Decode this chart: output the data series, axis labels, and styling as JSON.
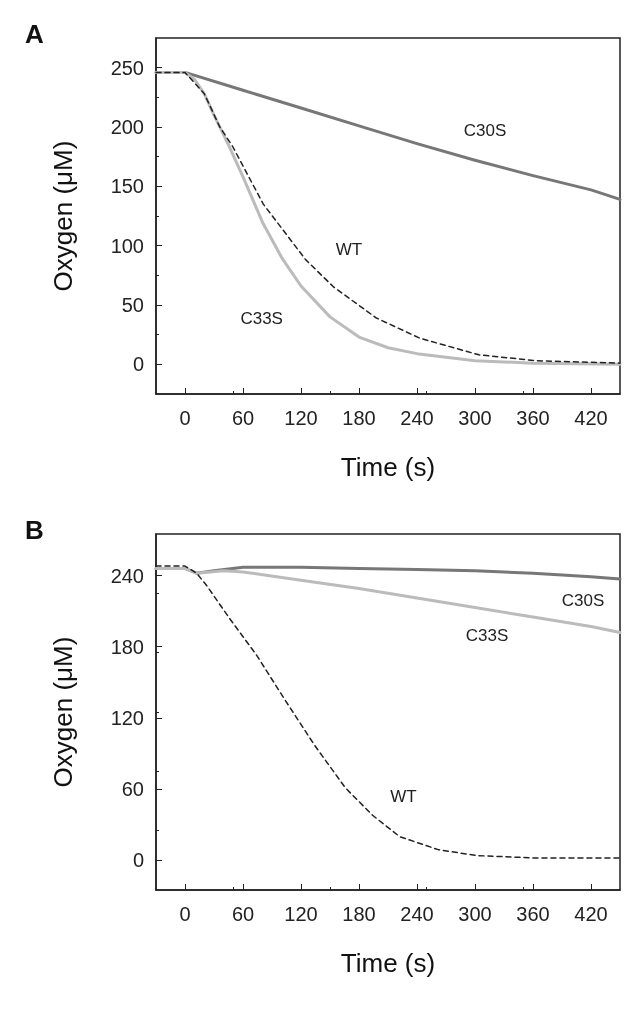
{
  "chart_data": [
    {
      "type": "line",
      "title": "A",
      "xlabel": "Time (s)",
      "ylabel": "Oxygen (μM)",
      "xlim": [
        -30,
        450
      ],
      "ylim": [
        -25,
        275
      ],
      "xticks": [
        0,
        60,
        120,
        180,
        240,
        300,
        360,
        420
      ],
      "yticks": [
        0,
        50,
        100,
        150,
        200,
        250
      ],
      "marker": "none",
      "series": [
        {
          "name": "C30S",
          "color": "#777777",
          "line_style": "solid",
          "x": [
            -30,
            0,
            60,
            120,
            180,
            240,
            300,
            360,
            420,
            450
          ],
          "values": [
            246,
            246,
            231,
            216,
            201,
            186,
            172,
            159,
            147,
            139
          ]
        },
        {
          "name": "C33S",
          "color": "#bbbbbb",
          "line_style": "solid",
          "x": [
            -30,
            0,
            10,
            20,
            30,
            45,
            60,
            80,
            100,
            120,
            150,
            180,
            210,
            240,
            300,
            360,
            450
          ],
          "values": [
            246,
            246,
            240,
            228,
            210,
            185,
            158,
            120,
            90,
            66,
            40,
            23,
            14,
            9,
            3,
            1,
            0
          ]
        },
        {
          "name": "WT",
          "color": "#222222",
          "line_style": "dashed",
          "x": [
            -30,
            0,
            20,
            36,
            49,
            81,
            125,
            154,
            198,
            243,
            304,
            364,
            450
          ],
          "values": [
            246,
            246,
            228,
            200,
            184,
            135,
            88,
            65,
            39,
            22,
            8,
            3,
            1
          ]
        }
      ]
    },
    {
      "type": "line",
      "title": "B",
      "xlabel": "Time (s)",
      "ylabel": "Oxygen (μM)",
      "xlim": [
        -30,
        450
      ],
      "ylim": [
        -25,
        275
      ],
      "xticks": [
        0,
        60,
        120,
        180,
        240,
        300,
        360,
        420
      ],
      "yticks": [
        0,
        60,
        120,
        180,
        240
      ],
      "marker": "none",
      "series": [
        {
          "name": "C30S",
          "color": "#777777",
          "line_style": "solid",
          "x": [
            -30,
            0,
            12,
            30,
            60,
            120,
            180,
            240,
            300,
            360,
            420,
            450
          ],
          "values": [
            246,
            246,
            242,
            244,
            247,
            247,
            246,
            245,
            244,
            242,
            239,
            237
          ]
        },
        {
          "name": "C33S",
          "color": "#bbbbbb",
          "line_style": "solid",
          "x": [
            -30,
            0,
            12,
            40,
            60,
            120,
            180,
            240,
            300,
            360,
            420,
            450
          ],
          "values": [
            246,
            246,
            242,
            244,
            243,
            236,
            229,
            221,
            213,
            205,
            197,
            192
          ]
        },
        {
          "name": "WT",
          "color": "#222222",
          "line_style": "dashed",
          "x": [
            -30,
            0,
            12,
            22,
            46,
            74,
            102,
            134,
            166,
            194,
            222,
            262,
            302,
            362,
            449
          ],
          "values": [
            248,
            248,
            242,
            232,
            204,
            173,
            137,
            97,
            61,
            38,
            20,
            9,
            4,
            2,
            2
          ]
        }
      ]
    }
  ]
}
